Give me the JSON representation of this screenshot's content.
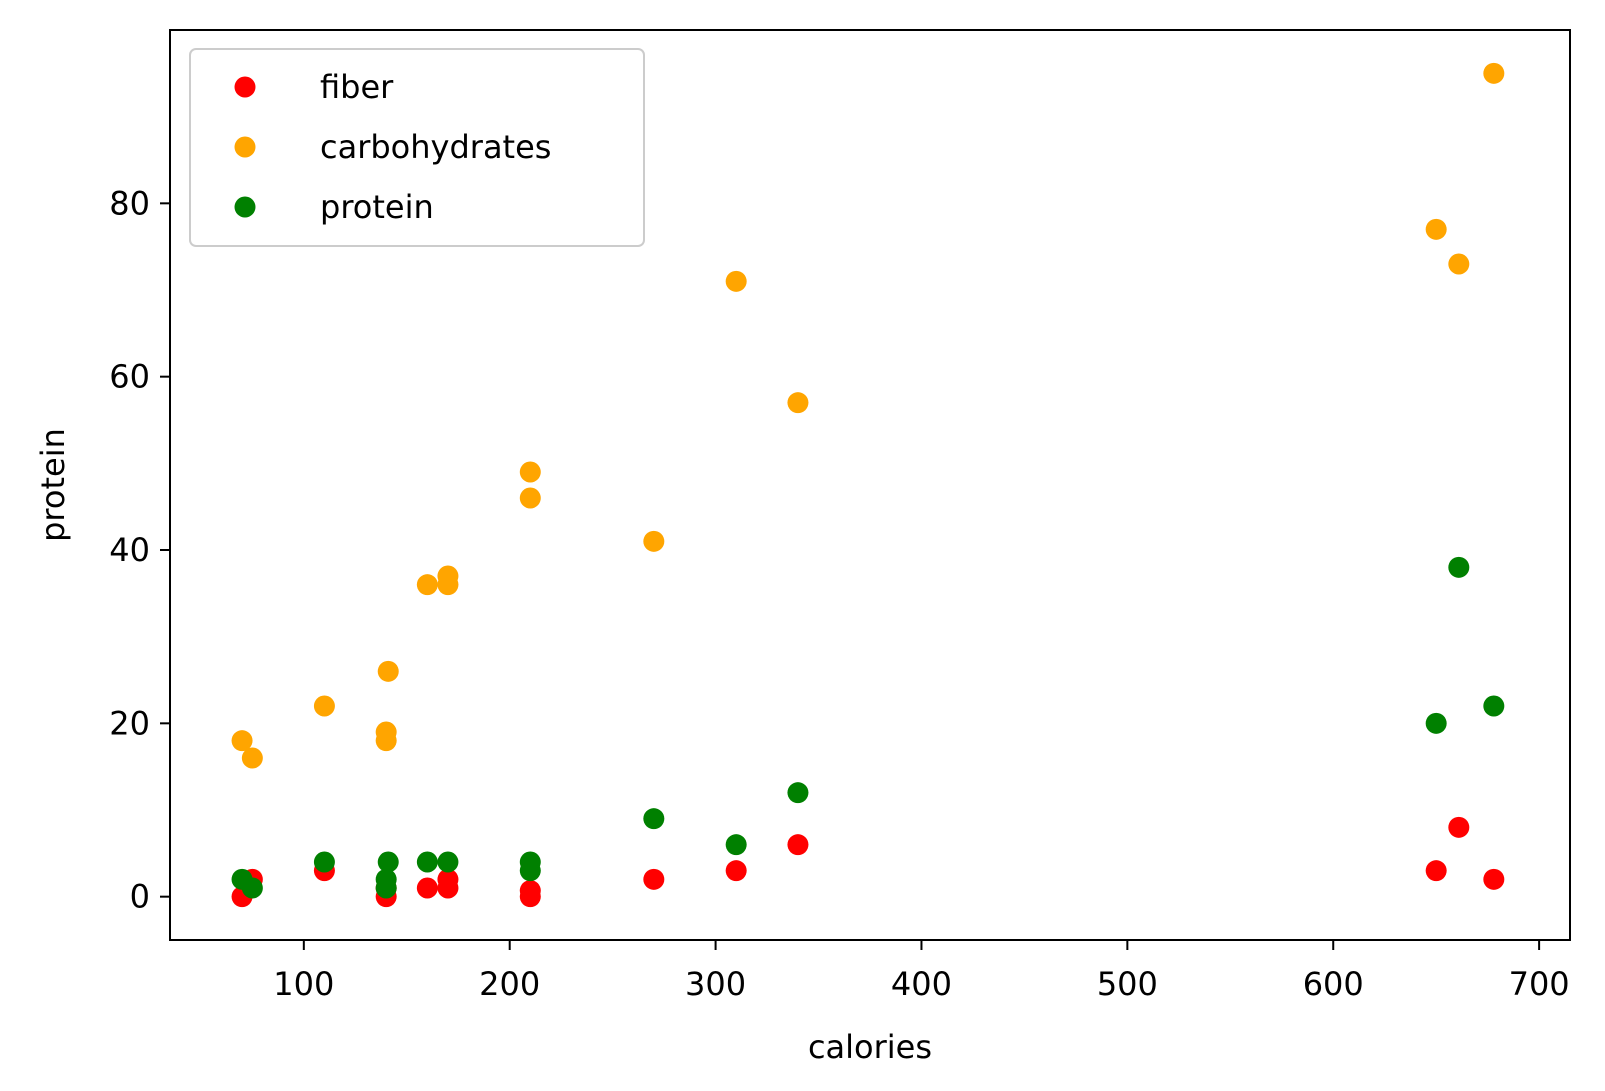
{
  "chart_data": {
    "type": "scatter",
    "title": "",
    "xlabel": "calories",
    "ylabel": "protein",
    "xlim": [
      35,
      715
    ],
    "ylim": [
      -5,
      100
    ],
    "xticks": [
      100,
      200,
      300,
      400,
      500,
      600,
      700
    ],
    "yticks": [
      0,
      20,
      40,
      60,
      80
    ],
    "grid": false,
    "legend_position": "top-left",
    "series": [
      {
        "name": "fiber",
        "color": "#ff0000",
        "points": [
          [
            70,
            0
          ],
          [
            75,
            2
          ],
          [
            110,
            3
          ],
          [
            140,
            0
          ],
          [
            140,
            1
          ],
          [
            160,
            1
          ],
          [
            170,
            2
          ],
          [
            170,
            1
          ],
          [
            210,
            0
          ],
          [
            210,
            0.7
          ],
          [
            270,
            2
          ],
          [
            310,
            3
          ],
          [
            340,
            6
          ],
          [
            650,
            3
          ],
          [
            661,
            8
          ],
          [
            678,
            2
          ]
        ]
      },
      {
        "name": "carbohydrates",
        "color": "#ffa500",
        "points": [
          [
            70,
            18
          ],
          [
            75,
            16
          ],
          [
            110,
            22
          ],
          [
            140,
            19
          ],
          [
            140,
            18
          ],
          [
            141,
            26
          ],
          [
            160,
            36
          ],
          [
            170,
            37
          ],
          [
            170,
            36
          ],
          [
            210,
            49
          ],
          [
            210,
            46
          ],
          [
            270,
            41
          ],
          [
            310,
            71
          ],
          [
            340,
            57
          ],
          [
            650,
            77
          ],
          [
            661,
            73
          ],
          [
            678,
            95
          ]
        ]
      },
      {
        "name": "protein",
        "color": "#008000",
        "points": [
          [
            70,
            2
          ],
          [
            75,
            1
          ],
          [
            110,
            4
          ],
          [
            140,
            1
          ],
          [
            140,
            2
          ],
          [
            141,
            4
          ],
          [
            160,
            4
          ],
          [
            170,
            4
          ],
          [
            210,
            4
          ],
          [
            210,
            3
          ],
          [
            270,
            9
          ],
          [
            310,
            6
          ],
          [
            340,
            12
          ],
          [
            650,
            20
          ],
          [
            661,
            38
          ],
          [
            678,
            22
          ]
        ]
      }
    ]
  }
}
